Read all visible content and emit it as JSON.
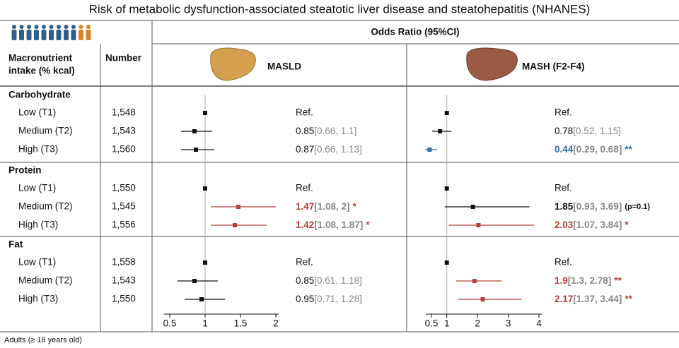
{
  "title": "Risk of metabolic dysfunction-associated steatotic liver disease and steatohepatitis (NHANES)",
  "header": {
    "odds_ratio": "Odds Ratio (95%CI)",
    "intake": [
      "Macronutrient",
      "intake (% kcal)"
    ],
    "number": "Number"
  },
  "groups": [
    {
      "name": "Carbohydrate",
      "levels": [
        {
          "label": "Low (T1)",
          "number": "1,548"
        },
        {
          "label": "Medium (T2)",
          "number": "1,543"
        },
        {
          "label": "High (T3)",
          "number": "1,560"
        }
      ]
    },
    {
      "name": "Protein",
      "levels": [
        {
          "label": "Low (T1)",
          "number": "1,550"
        },
        {
          "label": "Medium (T2)",
          "number": "1,545"
        },
        {
          "label": "High (T3)",
          "number": "1,556"
        }
      ]
    },
    {
      "name": "Fat",
      "levels": [
        {
          "label": "Low (T1)",
          "number": "1,558"
        },
        {
          "label": "Medium (T2)",
          "number": "1,543"
        },
        {
          "label": "High (T3)",
          "number": "1,550"
        }
      ]
    }
  ],
  "chart_data": [
    {
      "type": "forest",
      "title": "MASLD",
      "xlim": [
        0.5,
        2
      ],
      "xticks": [
        0.5,
        1,
        1.5,
        2
      ],
      "reference": 1,
      "rows": [
        {
          "value": 1,
          "label": "Ref."
        },
        {
          "value": 0.85,
          "low": 0.66,
          "high": 1.1,
          "ci_label": "[0.66, 1.1]",
          "color": "#111111"
        },
        {
          "value": 0.87,
          "low": 0.66,
          "high": 1.13,
          "ci_label": "[0.66, 1.13]",
          "color": "#111111"
        },
        {
          "value": 1,
          "label": "Ref."
        },
        {
          "value": 1.47,
          "low": 1.08,
          "high": 2,
          "ci_label": "[1.08, 2]",
          "sig": "*",
          "color": "#b5403a",
          "bold": true
        },
        {
          "value": 1.42,
          "low": 1.08,
          "high": 1.87,
          "ci_label": "[1.08, 1.87]",
          "sig": "*",
          "color": "#b5403a",
          "bold": true
        },
        {
          "value": 1,
          "label": "Ref."
        },
        {
          "value": 0.85,
          "low": 0.61,
          "high": 1.18,
          "ci_label": "[0.61, 1.18]",
          "color": "#111111"
        },
        {
          "value": 0.95,
          "low": 0.71,
          "high": 1.28,
          "ci_label": "[0.71, 1.28]",
          "color": "#111111"
        }
      ]
    },
    {
      "type": "forest",
      "title": "MASH (F2-F4)",
      "xlim": [
        0.5,
        4
      ],
      "xticks": [
        0.5,
        1,
        2,
        3,
        4
      ],
      "reference": 1,
      "rows": [
        {
          "value": 1,
          "label": "Ref."
        },
        {
          "value": 0.78,
          "low": 0.52,
          "high": 1.15,
          "ci_label": "[0.52, 1.15]",
          "color": "#111111"
        },
        {
          "value": 0.44,
          "low": 0.29,
          "high": 0.68,
          "ci_label": "[0.29, 0.68]",
          "sig": "**",
          "color": "#2e6ea6",
          "bold": true
        },
        {
          "value": 1,
          "label": "Ref."
        },
        {
          "value": 1.85,
          "low": 0.93,
          "high": 3.69,
          "ci_label": "[0.93, 3.69]",
          "note": "(p=0.1)",
          "color": "#111111",
          "bold": true
        },
        {
          "value": 2.03,
          "low": 1.07,
          "high": 3.84,
          "ci_label": "[1.07, 3.84]",
          "sig": "*",
          "color": "#b5403a",
          "bold": true
        },
        {
          "value": 1,
          "label": "Ref."
        },
        {
          "value": 1.9,
          "low": 1.3,
          "high": 2.78,
          "ci_label": "[1.3, 2.78]",
          "sig": "**",
          "color": "#b5403a",
          "bold": true
        },
        {
          "value": 2.17,
          "low": 1.37,
          "high": 3.44,
          "ci_label": "[1.37, 3.44]",
          "sig": "**",
          "color": "#b5403a",
          "bold": true
        }
      ]
    }
  ],
  "footnote": "Adults (≥ 18 years old)"
}
